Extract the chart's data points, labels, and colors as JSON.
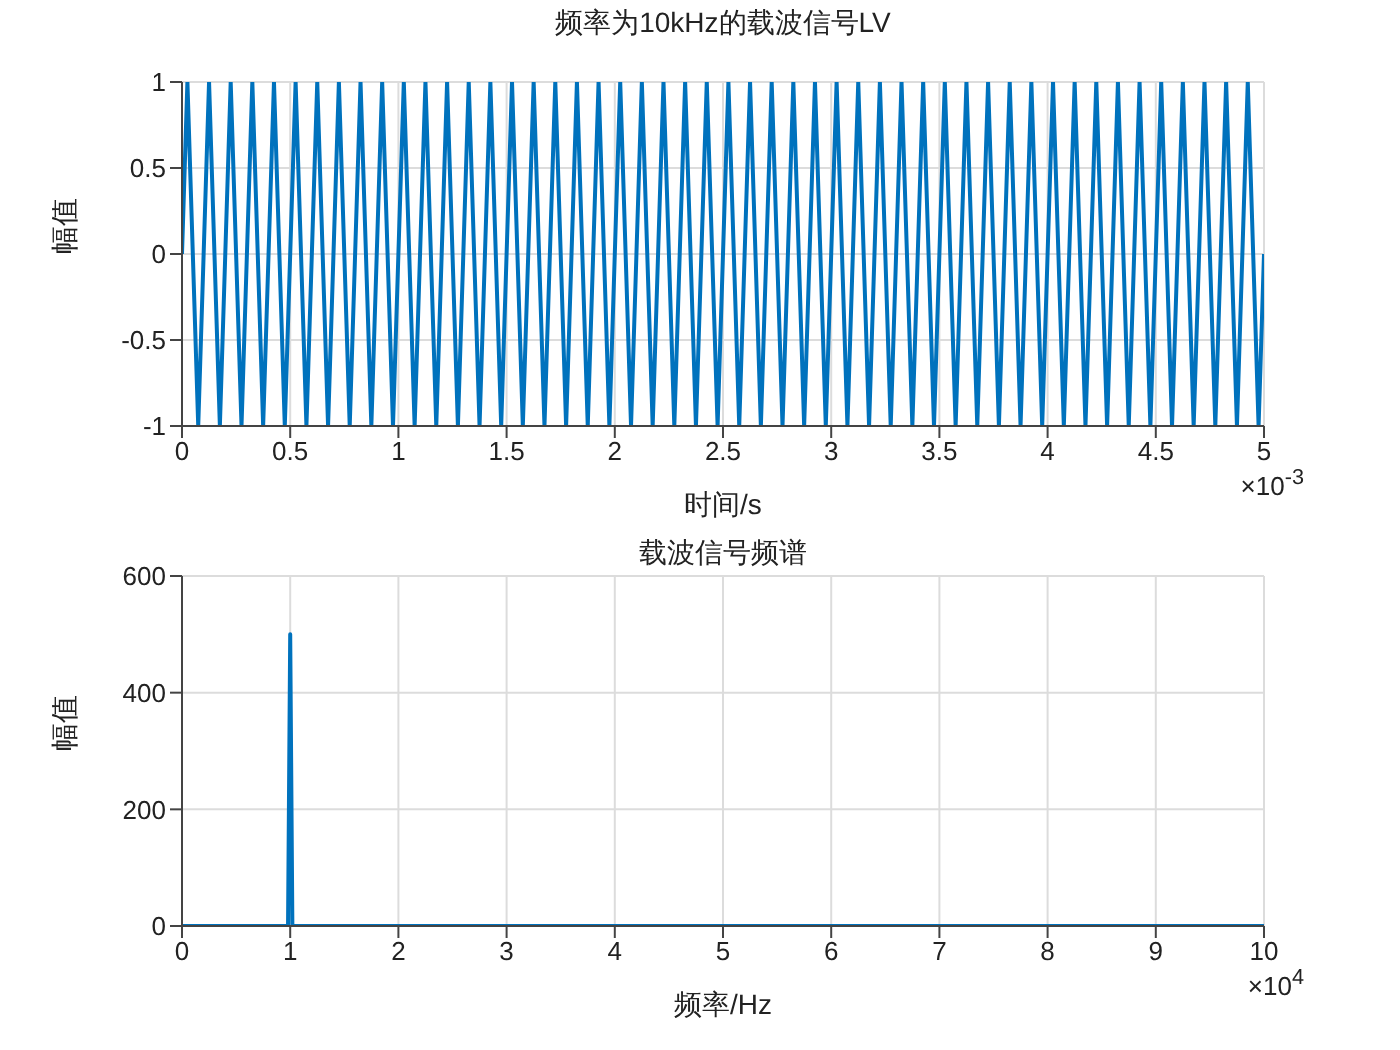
{
  "chart_data": [
    {
      "type": "line",
      "title": "频率为10kHz的载波信号LV",
      "xlabel": "时间/s",
      "ylabel": "幅值",
      "xlim": [
        0,
        5
      ],
      "xticks": [
        0,
        0.5,
        1,
        1.5,
        2,
        2.5,
        3,
        3.5,
        4,
        4.5,
        5
      ],
      "ylim": [
        -1,
        1
      ],
      "yticks": [
        -1,
        -0.5,
        0,
        0.5,
        1
      ],
      "grid": true,
      "marker": "none",
      "line_style": "solid",
      "annotations": [
        "×10$^{-3}$"
      ],
      "series": [
        {
          "color": "#0072bd",
          "x": [
            0,
            0.025,
            0.075,
            0.125,
            0.175,
            0.225,
            0.275,
            0.325,
            0.375,
            0.425,
            0.475,
            0.525,
            0.575,
            0.625,
            0.675,
            0.725,
            0.775,
            0.825,
            0.875,
            0.925,
            0.975,
            1.025,
            1.075,
            1.125,
            1.175,
            1.225,
            1.275,
            1.325,
            1.375,
            1.425,
            1.475,
            1.525,
            1.575,
            1.625,
            1.675,
            1.725,
            1.775,
            1.825,
            1.875,
            1.925,
            1.975,
            2.025,
            2.075,
            2.125,
            2.175,
            2.225,
            2.275,
            2.325,
            2.375,
            2.425,
            2.475,
            2.525,
            2.575,
            2.625,
            2.675,
            2.725,
            2.775,
            2.825,
            2.875,
            2.925,
            2.975,
            3.025,
            3.075,
            3.125,
            3.175,
            3.225,
            3.275,
            3.325,
            3.375,
            3.425,
            3.475,
            3.525,
            3.575,
            3.625,
            3.675,
            3.725,
            3.775,
            3.825,
            3.875,
            3.925,
            3.975,
            4.025,
            4.075,
            4.125,
            4.175,
            4.225,
            4.275,
            4.325,
            4.375,
            4.425,
            4.475,
            4.525,
            4.575,
            4.625,
            4.675,
            4.725,
            4.775,
            4.825,
            4.875,
            4.925,
            4.975,
            5
          ],
          "values": [
            0,
            1,
            -1,
            1,
            -1,
            1,
            -1,
            1,
            -1,
            1,
            -1,
            1,
            -1,
            1,
            -1,
            1,
            -1,
            1,
            -1,
            1,
            -1,
            1,
            -1,
            1,
            -1,
            1,
            -1,
            1,
            -1,
            1,
            -1,
            1,
            -1,
            1,
            -1,
            1,
            -1,
            1,
            -1,
            1,
            -1,
            1,
            -1,
            1,
            -1,
            1,
            -1,
            1,
            -1,
            1,
            -1,
            1,
            -1,
            1,
            -1,
            1,
            -1,
            1,
            -1,
            1,
            -1,
            1,
            -1,
            1,
            -1,
            1,
            -1,
            1,
            -1,
            1,
            -1,
            1,
            -1,
            1,
            -1,
            1,
            -1,
            1,
            -1,
            1,
            -1,
            1,
            -1,
            1,
            -1,
            1,
            -1,
            1,
            -1,
            1,
            -1,
            1,
            -1,
            1,
            -1,
            1,
            -1,
            1,
            -1,
            1,
            -1,
            0
          ]
        }
      ]
    },
    {
      "type": "line",
      "title": "载波信号频谱",
      "xlabel": "频率/Hz",
      "ylabel": "幅值",
      "xlim": [
        0,
        10
      ],
      "xticks": [
        0,
        1,
        2,
        3,
        4,
        5,
        6,
        7,
        8,
        9,
        10
      ],
      "ylim": [
        0,
        600
      ],
      "yticks": [
        0,
        200,
        400,
        600
      ],
      "grid": true,
      "marker": "none",
      "line_style": "solid",
      "annotations": [
        "×10$^{4}$"
      ],
      "series": [
        {
          "color": "#0072bd",
          "x": [
            0,
            0.98,
            1,
            1.02,
            10
          ],
          "values": [
            0,
            0,
            500,
            0,
            0
          ]
        }
      ]
    }
  ]
}
